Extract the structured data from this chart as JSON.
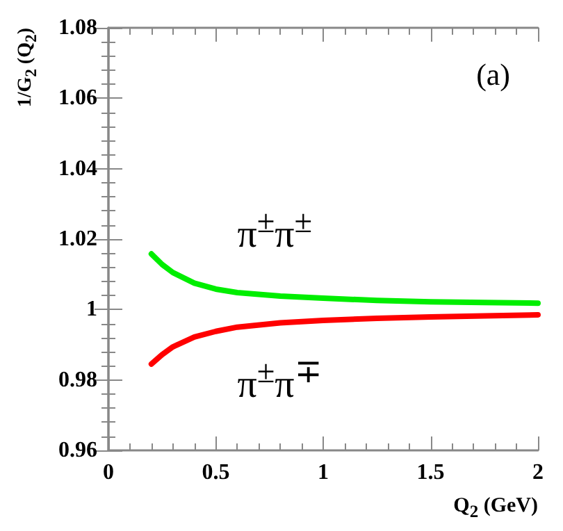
{
  "chart_data": {
    "type": "line",
    "xlabel": "Q$_{2}$ (GeV)",
    "ylabel": "1/G$_{2}$ (Q$_{2}$)",
    "annotations": [
      "(a)"
    ],
    "x": [
      0.2,
      0.25,
      0.3,
      0.4,
      0.5,
      0.6,
      0.8,
      1,
      1.25,
      1.5,
      1.75,
      2
    ],
    "series": [
      {
        "name": "π$^{±}$π$^{±}$",
        "color": "#00ee00",
        "values": [
          1.0158,
          1.0128,
          1.0105,
          1.0075,
          1.0058,
          1.0048,
          1.0038,
          1.0032,
          1.0026,
          1.0022,
          1.002,
          1.0018
        ]
      },
      {
        "name": "π$^{±}$π$^{∓}$",
        "color": "#ff0000",
        "values": [
          0.9845,
          0.9872,
          0.9894,
          0.9922,
          0.9938,
          0.995,
          0.9962,
          0.9969,
          0.9975,
          0.9979,
          0.9982,
          0.9985
        ]
      }
    ],
    "xlim": [
      0,
      2
    ],
    "xticks": [
      0,
      0.5,
      1,
      1.5,
      2
    ],
    "ylim": [
      0.96,
      1.08
    ],
    "yticks": [
      0.96,
      0.98,
      1,
      1.02,
      1.04,
      1.06,
      1.08
    ],
    "grid": false,
    "legend": false,
    "line_style": "solid"
  }
}
